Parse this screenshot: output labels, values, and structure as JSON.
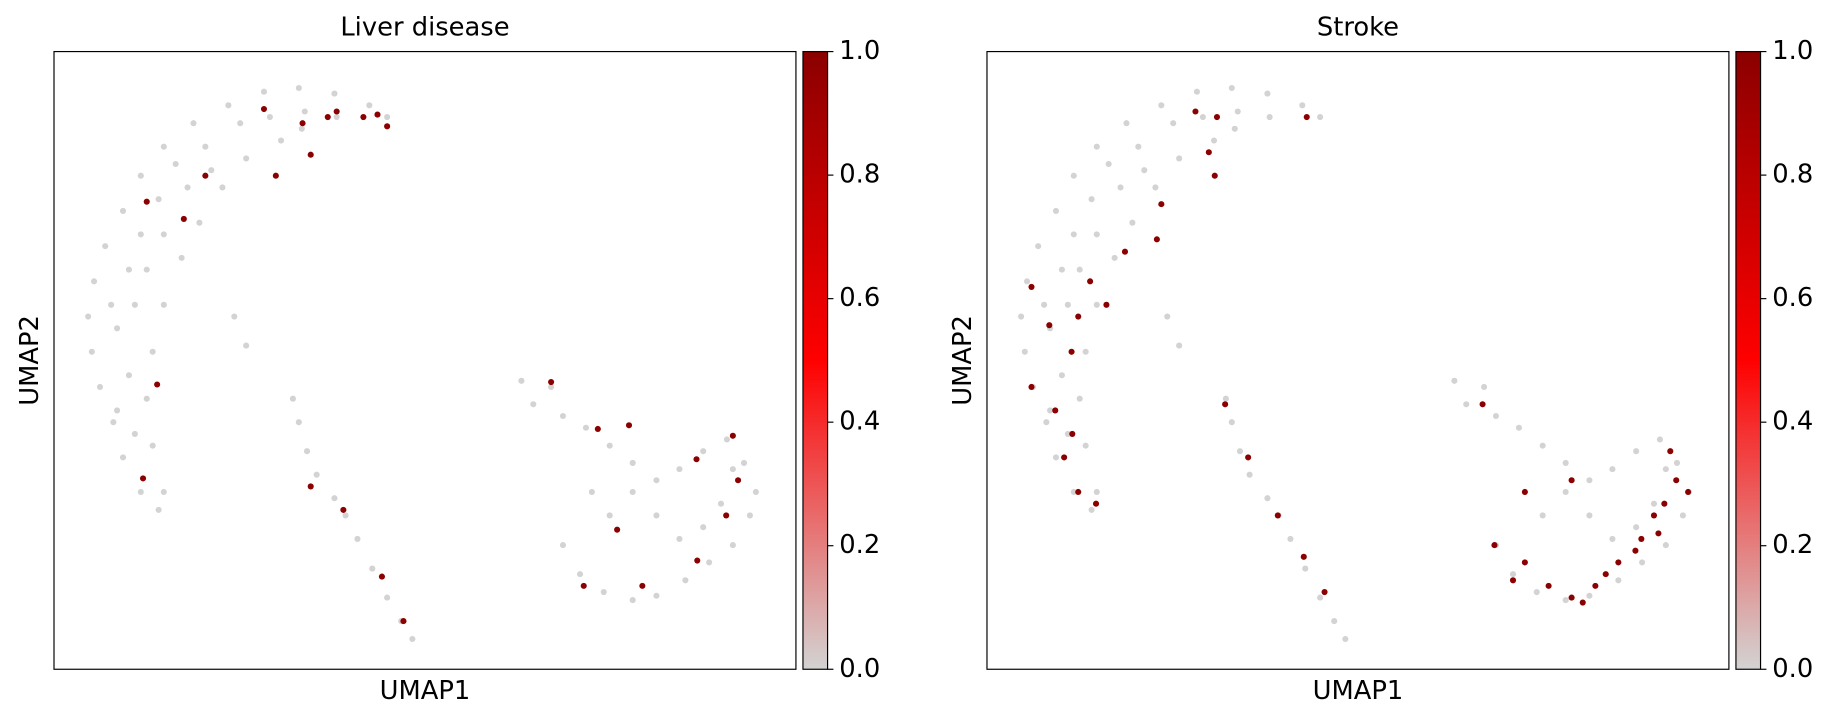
{
  "chart_data": [
    {
      "type": "scatter",
      "title": "Liver disease",
      "xlabel": "UMAP1",
      "ylabel": "UMAP2",
      "xlim": [
        0,
        100
      ],
      "ylim": [
        0,
        100
      ],
      "colormap": [
        "#d3d3d3",
        "#ff0000",
        "#8b0000"
      ],
      "clim": [
        0,
        1
      ],
      "cticks": [
        {
          "value": 0,
          "label": "0.0"
        },
        0.2,
        0.4,
        0.6,
        0.8,
        {
          "value": 1,
          "label": "1.0"
        }
      ],
      "x": [
        4.6,
        5.1,
        6.2,
        8.0,
        9.3,
        11.7,
        14.1,
        5.4,
        6.9,
        9.3,
        11.7,
        14.8,
        18.8,
        23.5,
        28.3,
        33.0,
        37.8,
        42.5,
        44.9,
        38.1,
        33.4,
        30.6,
        25.9,
        22.7,
        19.6,
        17.2,
        14.8,
        13.3,
        12.5,
        13.3,
        14.8,
        10.1,
        11.7,
        14.1,
        16.4,
        20.4,
        25.1,
        8.5,
        10.1,
        8.5,
        10.9,
        7.7,
        10.9,
        12.5,
        14.8,
        18.0,
        21.2,
        29.1,
        33.8,
        24.3,
        25.9,
        32.2,
        33.0,
        34.1,
        35.4,
        37.8,
        39.3,
        40.9,
        42.9,
        44.9,
        46.8,
        48.3,
        63.0,
        67.0,
        64.6,
        68.6,
        71.7,
        74.9,
        78.0,
        81.2,
        84.3,
        87.5,
        90.7,
        93.0,
        94.6,
        93.8,
        91.5,
        88.3,
        85.1,
        81.2,
        78.0,
        74.1,
        70.9,
        68.6,
        72.5,
        74.9,
        78.0,
        81.2,
        84.3,
        87.5,
        89.9,
        91.5,
        43.6,
        41.7,
        38.1,
        36.9,
        33.5,
        28.3,
        29.9,
        20.4,
        17.5,
        12.5,
        13.9,
        12.0,
        34.6,
        44.9,
        39.0,
        34.6,
        44.2,
        47.1,
        67.0,
        73.3,
        77.5,
        86.6,
        91.5,
        92.2,
        90.6,
        75.9,
        79.3,
        71.4,
        86.7
      ],
      "y": [
        57.1,
        51.4,
        45.7,
        40.0,
        34.3,
        28.7,
        25.8,
        62.8,
        68.5,
        74.2,
        79.9,
        84.6,
        88.4,
        91.3,
        93.5,
        94.1,
        93.2,
        91.3,
        89.4,
        89.4,
        87.5,
        85.6,
        82.7,
        78.0,
        72.3,
        66.6,
        59.0,
        51.4,
        43.8,
        36.2,
        28.7,
        64.7,
        70.4,
        76.1,
        81.8,
        84.6,
        88.4,
        55.2,
        47.6,
        41.9,
        38.1,
        59.0,
        59.0,
        64.7,
        70.4,
        78.0,
        80.8,
        89.4,
        90.3,
        57.1,
        52.4,
        43.8,
        40.0,
        35.3,
        31.5,
        27.7,
        24.9,
        21.1,
        16.3,
        11.6,
        7.8,
        4.9,
        46.7,
        45.7,
        42.9,
        41.0,
        39.1,
        36.2,
        33.4,
        30.6,
        32.4,
        35.3,
        37.2,
        33.4,
        28.7,
        24.9,
        20.1,
        17.3,
        14.4,
        11.9,
        11.2,
        12.5,
        15.4,
        20.1,
        28.7,
        24.9,
        28.7,
        24.9,
        21.1,
        23.0,
        26.8,
        32.4,
        89.8,
        89.4,
        90.3,
        89.4,
        88.4,
        90.7,
        79.9,
        79.9,
        72.9,
        75.7,
        46.1,
        30.9,
        83.3,
        87.9,
        25.8,
        29.6,
        15.0,
        7.8,
        46.5,
        38.9,
        39.5,
        34.0,
        37.8,
        30.6,
        24.9,
        22.6,
        13.5,
        13.5,
        17.6
      ],
      "values": [
        0,
        0,
        0,
        0,
        0,
        0,
        0,
        0,
        0,
        0,
        0,
        0,
        0,
        0,
        0,
        0,
        0,
        0,
        0,
        0,
        0,
        0,
        0,
        0,
        0,
        0,
        0,
        0,
        0,
        0,
        0,
        0,
        0,
        0,
        0,
        0,
        0,
        0,
        0,
        0,
        0,
        0,
        0,
        0,
        0,
        0,
        0,
        0,
        0,
        0,
        0,
        0,
        0,
        0,
        0,
        0,
        0,
        0,
        0,
        0,
        0,
        0,
        0,
        0,
        0,
        0,
        0,
        0,
        0,
        0,
        0,
        0,
        0,
        0,
        0,
        0,
        0,
        0,
        0,
        0,
        0,
        0,
        0,
        0,
        0,
        0,
        0,
        0,
        0,
        0,
        0,
        0,
        1,
        1,
        1,
        1,
        1,
        1,
        1,
        1,
        1,
        1,
        1,
        1,
        1,
        1,
        1,
        1,
        1,
        1,
        1,
        1,
        1,
        1,
        1,
        1,
        1,
        1,
        1,
        1,
        1
      ]
    },
    {
      "type": "scatter",
      "title": "Stroke",
      "xlabel": "UMAP1",
      "ylabel": "UMAP2",
      "xlim": [
        0,
        100
      ],
      "ylim": [
        0,
        100
      ],
      "colormap": [
        "#d3d3d3",
        "#ff0000",
        "#8b0000"
      ],
      "clim": [
        0,
        1
      ],
      "cticks": [
        {
          "value": 0,
          "label": "0.0"
        },
        0.2,
        0.4,
        0.6,
        0.8,
        {
          "value": 1,
          "label": "1.0"
        }
      ],
      "x": [
        4.6,
        5.1,
        6.2,
        8.0,
        9.3,
        11.7,
        14.1,
        5.4,
        6.9,
        9.3,
        11.7,
        14.8,
        18.8,
        23.5,
        28.3,
        33.0,
        37.8,
        42.5,
        44.9,
        38.1,
        33.4,
        30.6,
        25.9,
        22.7,
        19.6,
        17.2,
        14.8,
        13.3,
        12.5,
        13.3,
        14.8,
        10.1,
        11.7,
        14.1,
        16.4,
        20.4,
        25.1,
        8.5,
        10.1,
        8.5,
        10.9,
        7.7,
        10.9,
        12.5,
        14.8,
        18.0,
        21.2,
        29.1,
        33.8,
        24.3,
        25.9,
        32.2,
        33.0,
        34.1,
        35.4,
        37.8,
        39.3,
        40.9,
        42.9,
        44.9,
        46.8,
        48.3,
        63.0,
        67.0,
        64.6,
        68.6,
        71.7,
        74.9,
        78.0,
        81.2,
        84.3,
        87.5,
        90.7,
        93.0,
        94.6,
        93.8,
        91.5,
        88.3,
        85.1,
        81.2,
        78.0,
        74.1,
        70.9,
        68.6,
        72.5,
        74.9,
        78.0,
        81.2,
        84.3,
        87.5,
        89.9,
        91.5,
        28.1,
        31.0,
        43.1,
        29.9,
        30.7,
        23.5,
        22.9,
        18.6,
        13.9,
        16.1,
        12.3,
        11.4,
        6.0,
        9.2,
        11.5,
        10.4,
        12.3,
        14.7,
        8.4,
        6.0,
        32.1,
        35.2,
        39.2,
        42.7,
        45.5,
        66.8,
        72.5,
        78.8,
        72.5,
        75.7,
        78.8,
        82.0,
        85.1,
        88.2,
        91.3,
        92.9,
        94.5,
        92.1,
        89.9,
        70.9,
        80.3,
        83.4,
        87.4,
        90.5,
        68.4
      ],
      "y": [
        57.1,
        51.4,
        45.7,
        40.0,
        34.3,
        28.7,
        25.8,
        62.8,
        68.5,
        74.2,
        79.9,
        84.6,
        88.4,
        91.3,
        93.5,
        94.1,
        93.2,
        91.3,
        89.4,
        89.4,
        87.5,
        85.6,
        82.7,
        78.0,
        72.3,
        66.6,
        59.0,
        51.4,
        43.8,
        36.2,
        28.7,
        64.7,
        70.4,
        76.1,
        81.8,
        84.6,
        88.4,
        55.2,
        47.6,
        41.9,
        38.1,
        59.0,
        59.0,
        64.7,
        70.4,
        78.0,
        80.8,
        89.4,
        90.3,
        57.1,
        52.4,
        43.8,
        40.0,
        35.3,
        31.5,
        27.7,
        24.9,
        21.1,
        16.3,
        11.6,
        7.8,
        4.9,
        46.7,
        45.7,
        42.9,
        41.0,
        39.1,
        36.2,
        33.4,
        30.6,
        32.4,
        35.3,
        37.2,
        33.4,
        28.7,
        24.9,
        20.1,
        17.3,
        14.4,
        11.9,
        11.2,
        12.5,
        15.4,
        20.1,
        28.7,
        24.9,
        28.7,
        24.9,
        21.1,
        23.0,
        26.8,
        32.4,
        90.3,
        89.4,
        89.4,
        83.7,
        79.9,
        75.3,
        69.6,
        67.6,
        62.8,
        59.0,
        57.1,
        51.4,
        45.7,
        41.9,
        38.1,
        34.3,
        28.7,
        26.8,
        55.7,
        61.9,
        42.9,
        34.3,
        24.9,
        18.2,
        12.5,
        42.9,
        28.7,
        30.6,
        17.3,
        13.5,
        11.6,
        13.5,
        17.3,
        21.1,
        26.8,
        30.6,
        28.7,
        35.3,
        24.9,
        14.4,
        10.8,
        15.4,
        19.2,
        22.0,
        20.1
      ],
      "values": [
        0,
        0,
        0,
        0,
        0,
        0,
        0,
        0,
        0,
        0,
        0,
        0,
        0,
        0,
        0,
        0,
        0,
        0,
        0,
        0,
        0,
        0,
        0,
        0,
        0,
        0,
        0,
        0,
        0,
        0,
        0,
        0,
        0,
        0,
        0,
        0,
        0,
        0,
        0,
        0,
        0,
        0,
        0,
        0,
        0,
        0,
        0,
        0,
        0,
        0,
        0,
        0,
        0,
        0,
        0,
        0,
        0,
        0,
        0,
        0,
        0,
        0,
        0,
        0,
        0,
        0,
        0,
        0,
        0,
        0,
        0,
        0,
        0,
        0,
        0,
        0,
        0,
        0,
        0,
        0,
        0,
        0,
        0,
        0,
        0,
        0,
        0,
        0,
        0,
        0,
        0,
        0,
        1,
        1,
        1,
        1,
        1,
        1,
        1,
        1,
        1,
        1,
        1,
        1,
        1,
        1,
        1,
        1,
        1,
        1,
        1,
        1,
        1,
        1,
        1,
        1,
        1,
        1,
        1,
        1,
        1,
        1,
        1,
        1,
        1,
        1,
        1,
        1,
        1,
        1,
        1,
        1,
        1,
        1,
        1,
        1,
        1
      ]
    }
  ]
}
